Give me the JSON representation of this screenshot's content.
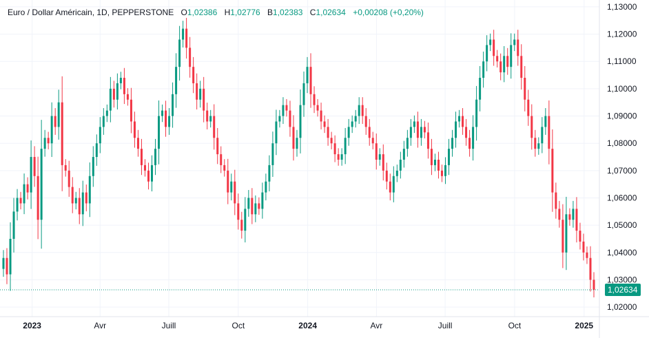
{
  "header": {
    "symbol": "Euro / Dollar Américain, 1D, PEPPERSTONE",
    "open_label": "O",
    "open": "1,02386",
    "high_label": "H",
    "high": "1,02776",
    "low_label": "B",
    "low": "1,02383",
    "close_label": "C",
    "close": "1,02634",
    "change": "+0,00208 (+0,20%)"
  },
  "colors": {
    "up": "#089981",
    "down": "#f23645",
    "grid": "#f0f3fa",
    "last_price": "#089981"
  },
  "chart_data": {
    "type": "candlestick",
    "interval": "1D",
    "ylim": [
      1.0165,
      1.1325
    ],
    "y_ticks": [
      "1,02000",
      "1,03000",
      "1,04000",
      "1,05000",
      "1,06000",
      "1,07000",
      "1,08000",
      "1,09000",
      "1,10000",
      "1,11000",
      "1,12000",
      "1,13000"
    ],
    "y_tick_values": [
      1.02,
      1.03,
      1.04,
      1.05,
      1.06,
      1.07,
      1.08,
      1.09,
      1.1,
      1.11,
      1.12,
      1.13
    ],
    "x_range": [
      "2022-11-24",
      "2025-01-14"
    ],
    "x_ticks": [
      {
        "label": "2023",
        "date": "2023-01-01",
        "bold": true
      },
      {
        "label": "Avr",
        "date": "2023-04-01"
      },
      {
        "label": "Juill",
        "date": "2023-07-01"
      },
      {
        "label": "Oct",
        "date": "2023-10-01"
      },
      {
        "label": "2024",
        "date": "2024-01-01",
        "bold": true
      },
      {
        "label": "Avr",
        "date": "2024-04-01"
      },
      {
        "label": "Juill",
        "date": "2024-07-01"
      },
      {
        "label": "Oct",
        "date": "2024-10-01"
      },
      {
        "label": "2025",
        "date": "2025-01-01",
        "bold": true
      }
    ],
    "last_price": 1.02634,
    "last_price_label": "1,02634",
    "closes": [
      1.038,
      1.032,
      1.045,
      1.055,
      1.06,
      1.058,
      1.065,
      1.062,
      1.075,
      1.068,
      1.052,
      1.078,
      1.082,
      1.08,
      1.09,
      1.086,
      1.095,
      1.072,
      1.07,
      1.064,
      1.058,
      1.06,
      1.054,
      1.062,
      1.058,
      1.068,
      1.075,
      1.08,
      1.086,
      1.09,
      1.092,
      1.1,
      1.096,
      1.102,
      1.104,
      1.098,
      1.096,
      1.088,
      1.082,
      1.078,
      1.072,
      1.07,
      1.066,
      1.072,
      1.078,
      1.09,
      1.092,
      1.086,
      1.09,
      1.098,
      1.108,
      1.118,
      1.122,
      1.115,
      1.108,
      1.102,
      1.096,
      1.1,
      1.092,
      1.088,
      1.09,
      1.082,
      1.076,
      1.072,
      1.07,
      1.062,
      1.066,
      1.058,
      1.052,
      1.048,
      1.056,
      1.06,
      1.054,
      1.058,
      1.056,
      1.062,
      1.066,
      1.072,
      1.08,
      1.088,
      1.09,
      1.094,
      1.092,
      1.086,
      1.078,
      1.082,
      1.094,
      1.102,
      1.108,
      1.098,
      1.094,
      1.092,
      1.088,
      1.086,
      1.082,
      1.08,
      1.076,
      1.074,
      1.076,
      1.082,
      1.086,
      1.088,
      1.09,
      1.094,
      1.09,
      1.086,
      1.082,
      1.08,
      1.074,
      1.076,
      1.07,
      1.066,
      1.062,
      1.068,
      1.07,
      1.074,
      1.078,
      1.082,
      1.086,
      1.088,
      1.082,
      1.086,
      1.084,
      1.078,
      1.072,
      1.074,
      1.07,
      1.068,
      1.072,
      1.078,
      1.082,
      1.088,
      1.09,
      1.086,
      1.082,
      1.078,
      1.086,
      1.096,
      1.104,
      1.11,
      1.116,
      1.118,
      1.112,
      1.11,
      1.106,
      1.112,
      1.108,
      1.116,
      1.118,
      1.112,
      1.104,
      1.096,
      1.09,
      1.082,
      1.078,
      1.08,
      1.086,
      1.09,
      1.078,
      1.062,
      1.056,
      1.052,
      1.04,
      1.054,
      1.052,
      1.056,
      1.048,
      1.044,
      1.04,
      1.038,
      1.03,
      1.02634
    ]
  }
}
